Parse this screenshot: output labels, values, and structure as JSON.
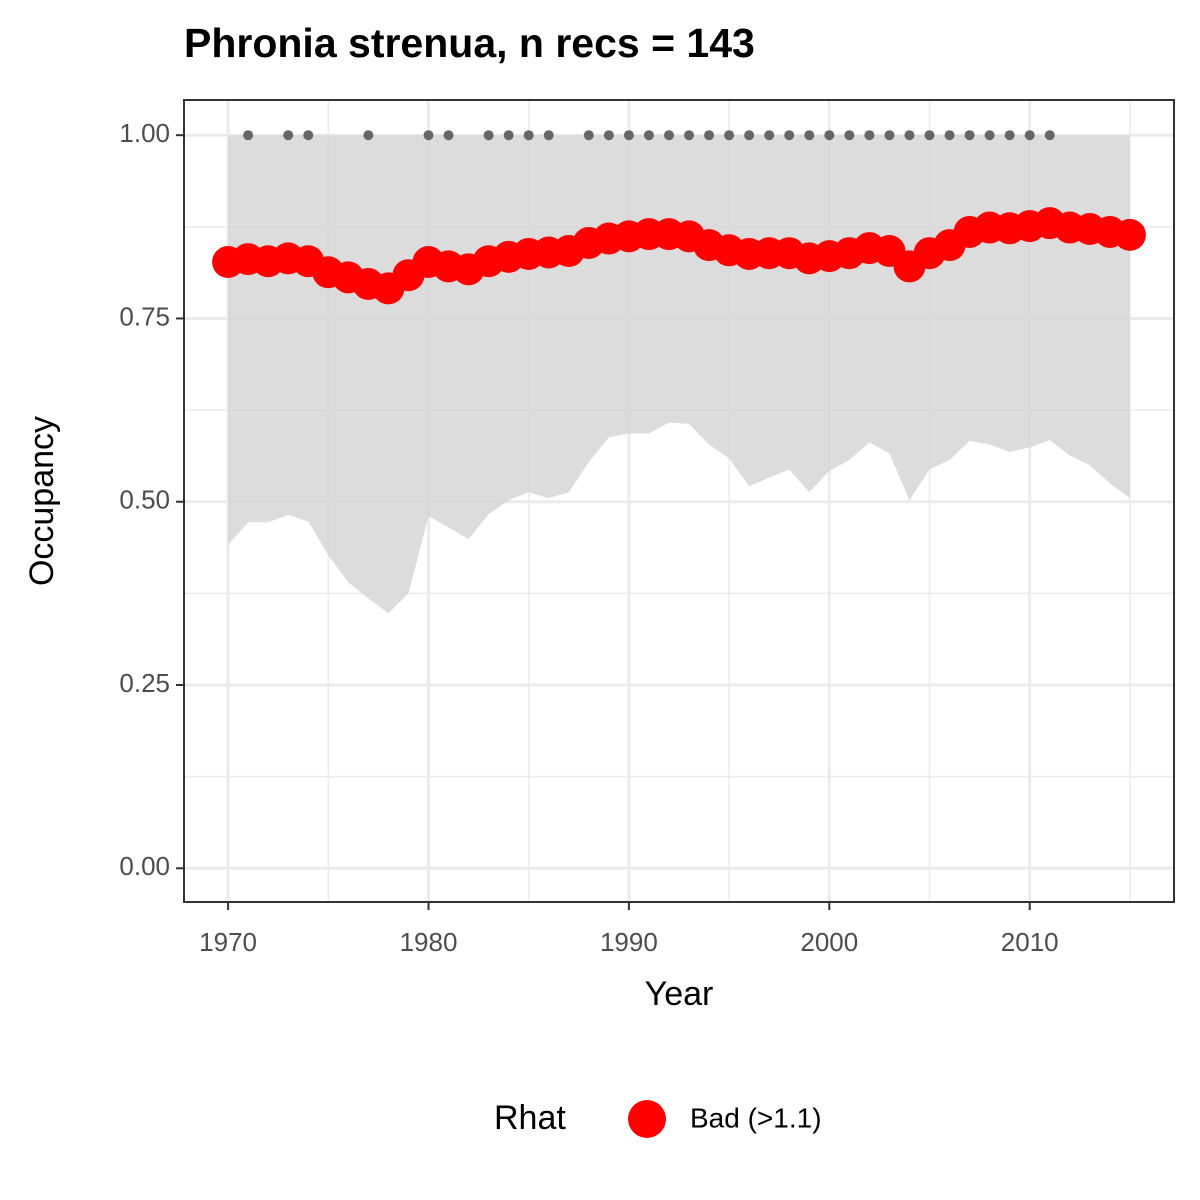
{
  "chart_data": {
    "type": "line",
    "title": "Phronia strenua, n recs = 143",
    "x_label": "Year",
    "y_label": "Occupancy",
    "legend_title": "Rhat",
    "legend_position": "bottom",
    "x": [
      1970,
      1971,
      1972,
      1973,
      1974,
      1975,
      1976,
      1977,
      1978,
      1979,
      1980,
      1981,
      1982,
      1983,
      1984,
      1985,
      1986,
      1987,
      1988,
      1989,
      1990,
      1991,
      1992,
      1993,
      1994,
      1995,
      1996,
      1997,
      1998,
      1999,
      2000,
      2001,
      2002,
      2003,
      2004,
      2005,
      2006,
      2007,
      2008,
      2009,
      2010,
      2011,
      2012,
      2013,
      2014,
      2015
    ],
    "series": [
      {
        "name": "Bad (>1.1)",
        "color": "#ff0000",
        "values": [
          0.827,
          0.831,
          0.828,
          0.832,
          0.828,
          0.813,
          0.806,
          0.797,
          0.791,
          0.809,
          0.827,
          0.821,
          0.817,
          0.828,
          0.834,
          0.838,
          0.84,
          0.842,
          0.853,
          0.859,
          0.862,
          0.865,
          0.865,
          0.862,
          0.85,
          0.843,
          0.838,
          0.839,
          0.839,
          0.832,
          0.835,
          0.839,
          0.846,
          0.842,
          0.821,
          0.839,
          0.85,
          0.868,
          0.874,
          0.873,
          0.876,
          0.88,
          0.874,
          0.872,
          0.868,
          0.864
        ]
      }
    ],
    "ribbon": {
      "color": "#d6d6d6",
      "lower": [
        0.441,
        0.472,
        0.472,
        0.482,
        0.473,
        0.427,
        0.39,
        0.368,
        0.348,
        0.375,
        0.48,
        0.465,
        0.449,
        0.483,
        0.502,
        0.513,
        0.505,
        0.513,
        0.554,
        0.588,
        0.593,
        0.593,
        0.608,
        0.606,
        0.578,
        0.559,
        0.521,
        0.533,
        0.544,
        0.513,
        0.542,
        0.557,
        0.581,
        0.566,
        0.502,
        0.544,
        0.557,
        0.583,
        0.578,
        0.568,
        0.574,
        0.584,
        0.563,
        0.55,
        0.525,
        0.505
      ],
      "upper": [
        1,
        1,
        1,
        1,
        1,
        1,
        1,
        1,
        1,
        1,
        1,
        1,
        1,
        1,
        1,
        1,
        1,
        1,
        1,
        1,
        1,
        1,
        1,
        1,
        1,
        1,
        1,
        1,
        1,
        1,
        1,
        1,
        1,
        1,
        1,
        1,
        1,
        1,
        1,
        1,
        1,
        1,
        1,
        1,
        1,
        1
      ]
    },
    "records": {
      "color": "#666666",
      "x": [
        1971,
        1973,
        1974,
        1977,
        1980,
        1981,
        1983,
        1984,
        1985,
        1986,
        1988,
        1989,
        1990,
        1991,
        1992,
        1993,
        1994,
        1995,
        1996,
        1997,
        1998,
        1999,
        2000,
        2001,
        2002,
        2003,
        2004,
        2005,
        2006,
        2007,
        2008,
        2009,
        2010,
        2011
      ],
      "values": [
        1,
        1,
        1,
        1,
        1,
        1,
        1,
        1,
        1,
        1,
        1,
        1,
        1,
        1,
        1,
        1,
        1,
        1,
        1,
        1,
        1,
        1,
        1,
        1,
        1,
        1,
        1,
        1,
        1,
        1,
        1,
        1,
        1,
        1
      ]
    },
    "xlim": [
      1967.8,
      2017.2
    ],
    "ylim": [
      -0.046,
      1.048
    ],
    "xticks": [
      1970,
      1980,
      1990,
      2000,
      2010
    ],
    "x_minor_ticks": [
      1975,
      1985,
      1995,
      2005,
      2015
    ],
    "yticks": [
      {
        "value": 0,
        "label": "0.00"
      },
      {
        "value": 0.25,
        "label": "0.25"
      },
      {
        "value": 0.5,
        "label": "0.50"
      },
      {
        "value": 0.75,
        "label": "0.75"
      },
      {
        "value": 1,
        "label": "1.00"
      }
    ],
    "y_minor_ticks": [
      0.125,
      0.375,
      0.625,
      0.875
    ],
    "grid": true
  }
}
